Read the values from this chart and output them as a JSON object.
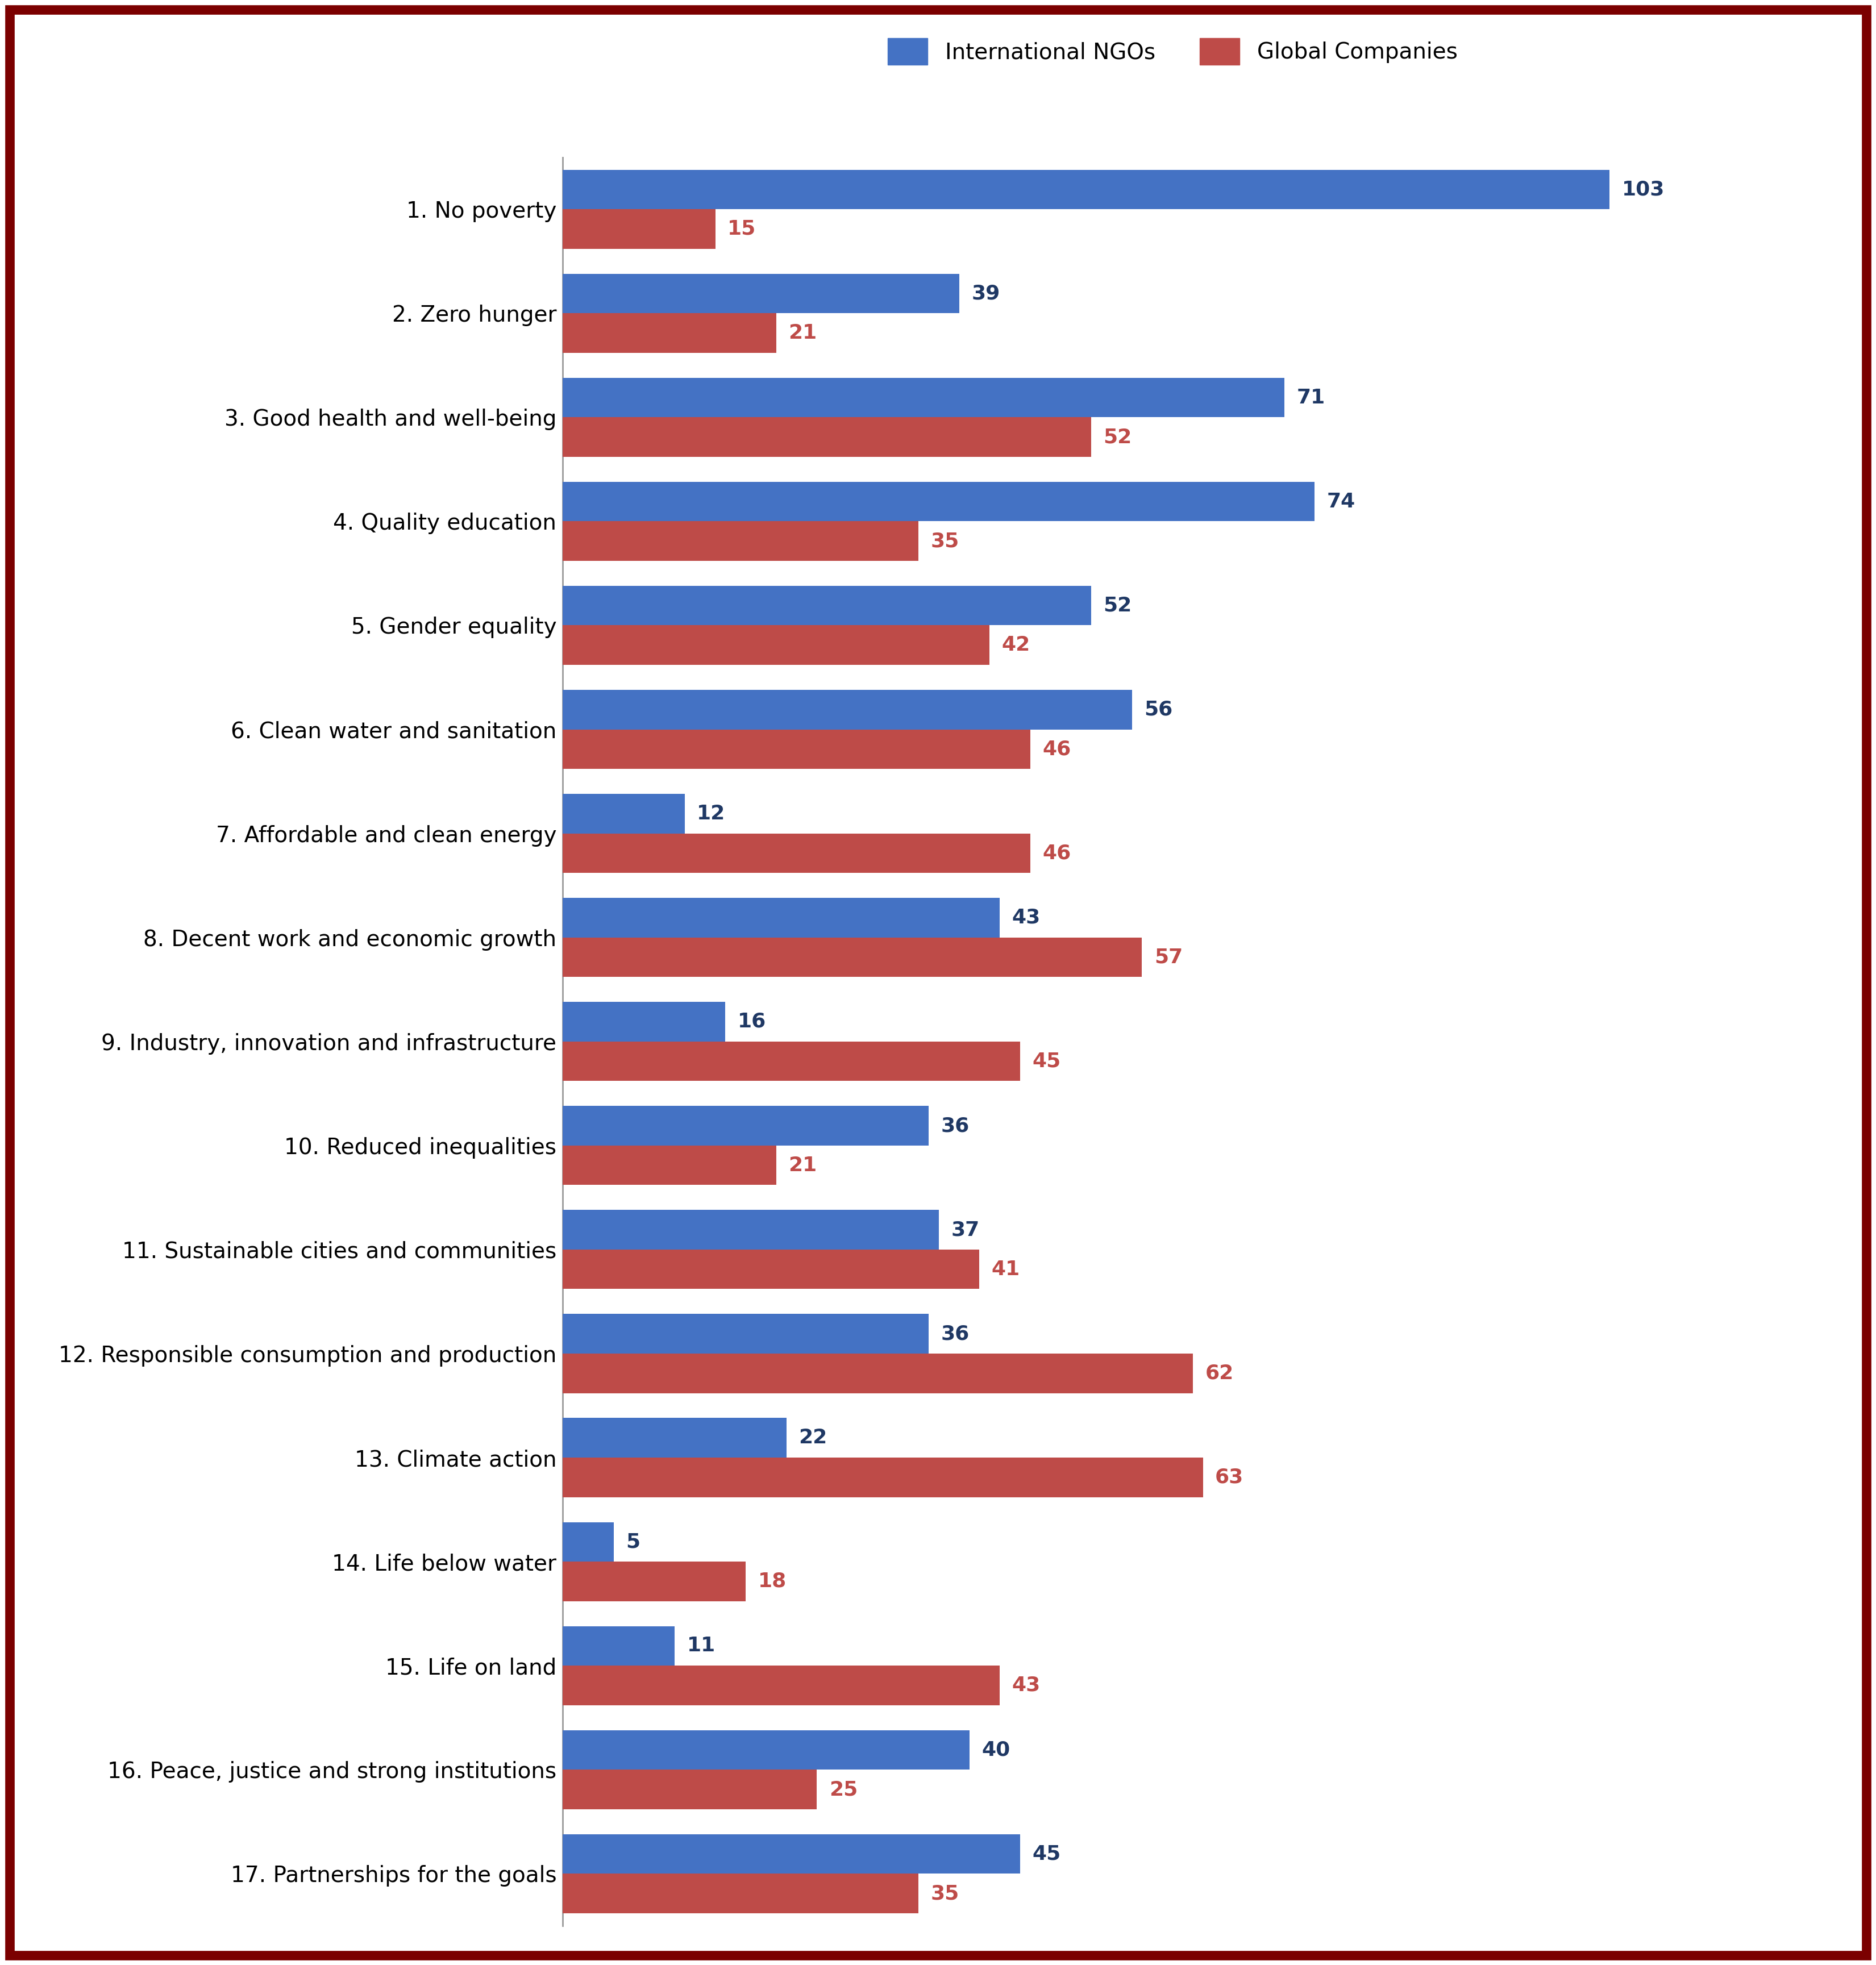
{
  "categories": [
    "1. No poverty",
    "2. Zero hunger",
    "3. Good health and well-being",
    "4. Quality education",
    "5. Gender equality",
    "6. Clean water and sanitation",
    "7. Affordable and clean energy",
    "8. Decent work and economic growth",
    "9. Industry, innovation and infrastructure",
    "10. Reduced inequalities",
    "11. Sustainable cities and communities",
    "12. Responsible consumption and production",
    "13. Climate action",
    "14. Life below water",
    "15. Life on land",
    "16. Peace, justice and strong institutions",
    "17. Partnerships for the goals"
  ],
  "ngo_values": [
    103,
    39,
    71,
    74,
    52,
    56,
    12,
    43,
    16,
    36,
    37,
    36,
    22,
    5,
    11,
    40,
    45
  ],
  "company_values": [
    15,
    21,
    52,
    35,
    42,
    46,
    46,
    57,
    45,
    21,
    41,
    62,
    63,
    18,
    43,
    25,
    35
  ],
  "ngo_color": "#4472C4",
  "company_color": "#BE4B48",
  "ngo_label": "International NGOs",
  "company_label": "Global Companies",
  "ngo_value_color": "#1F3864",
  "company_value_color": "#BE4B48",
  "background_color": "#FFFFFF",
  "border_color": "#7B0000",
  "border_linewidth": 12,
  "bar_height": 0.38,
  "xlim": [
    0,
    120
  ],
  "fontsize_labels": 28,
  "fontsize_values": 26,
  "fontsize_legend": 28,
  "axis_linecolor": "#999999"
}
